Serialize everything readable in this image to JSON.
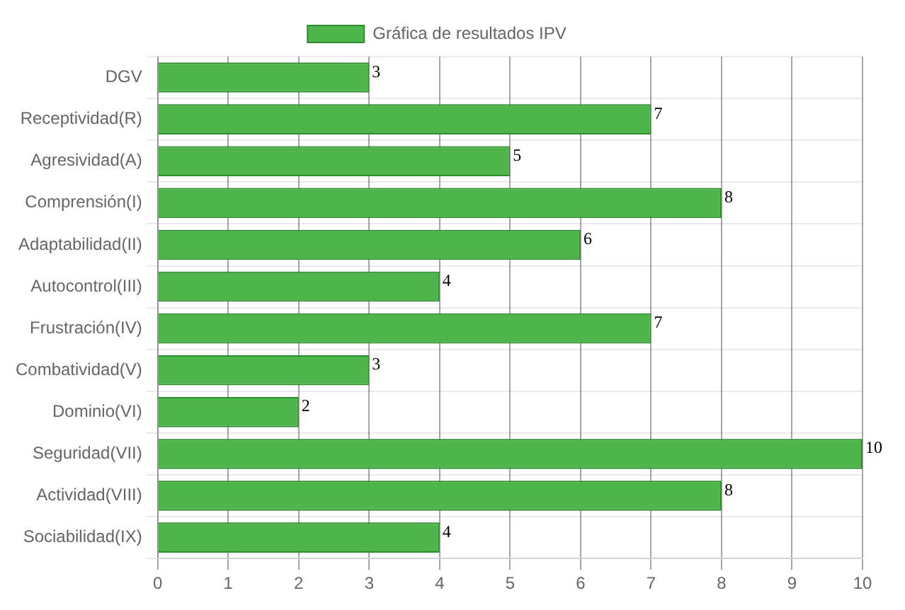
{
  "chart_data": {
    "type": "bar",
    "orientation": "horizontal",
    "categories": [
      "DGV",
      "Receptividad(R)",
      "Agresividad(A)",
      "Comprensión(I)",
      "Adaptabilidad(II)",
      "Autocontrol(III)",
      "Frustración(IV)",
      "Combatividad(V)",
      "Dominio(VI)",
      "Seguridad(VII)",
      "Actividad(VIII)",
      "Sociabilidad(IX)"
    ],
    "series": [
      {
        "name": "Gráfica de resultados IPV",
        "color": "#4db54a",
        "values": [
          3,
          7,
          5,
          8,
          6,
          4,
          7,
          3,
          2,
          10,
          8,
          4
        ]
      }
    ],
    "xlim": [
      0,
      10
    ],
    "xticks": [
      0,
      1,
      2,
      3,
      4,
      5,
      6,
      7,
      8,
      9,
      10
    ],
    "grid": true,
    "legend": "top",
    "data_labels": true
  }
}
